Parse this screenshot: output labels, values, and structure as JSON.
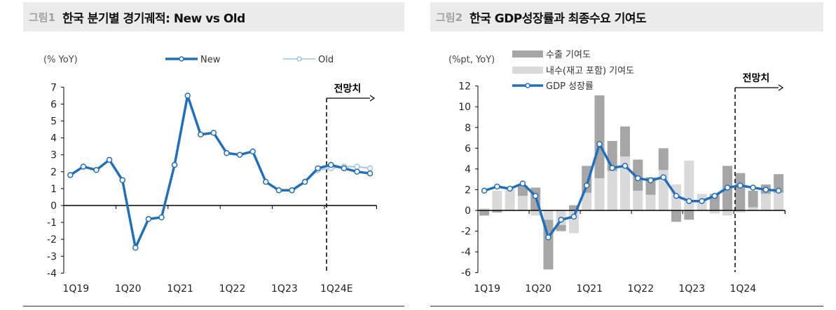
{
  "figures": [
    {
      "number": "그림1",
      "title": "한국 분기별 경기궤적: New vs Old"
    },
    {
      "number": "그림2",
      "title": "한국 GDP성장률과 최종수요 기여도"
    }
  ],
  "colors": {
    "new": "#1f6fbf",
    "old": "#9dc3e6",
    "export": "#a6a6a6",
    "domestic": "#d9d9d9",
    "header_bg": "#ebebeb"
  },
  "chart_data": [
    {
      "type": "line",
      "unit_label": "(% YoY)",
      "forecast_label": "전망치",
      "forecast_start": "1Q24",
      "x": [
        "1Q19",
        "2Q19",
        "3Q19",
        "4Q19",
        "1Q20",
        "2Q20",
        "3Q20",
        "4Q20",
        "1Q21",
        "2Q21",
        "3Q21",
        "4Q21",
        "1Q22",
        "2Q22",
        "3Q22",
        "4Q22",
        "1Q23",
        "2Q23",
        "3Q23",
        "4Q23",
        "1Q24",
        "2Q24",
        "3Q24",
        "4Q24"
      ],
      "x_tick_labels": [
        "1Q19",
        "1Q20",
        "1Q21",
        "1Q22",
        "1Q23",
        "1Q24E"
      ],
      "ylim": [
        -4,
        7
      ],
      "y_ticks": [
        -4,
        -3,
        -2,
        -1,
        0,
        1,
        2,
        3,
        4,
        5,
        6,
        7
      ],
      "legend_position": "top",
      "series": [
        {
          "name": "New",
          "color": "#1f6fbf",
          "values": [
            1.8,
            2.3,
            2.1,
            2.7,
            1.5,
            -2.5,
            -0.8,
            -0.7,
            2.4,
            6.5,
            4.2,
            4.3,
            3.1,
            3.0,
            3.2,
            1.4,
            0.9,
            0.9,
            1.4,
            2.2,
            2.4,
            2.2,
            2.0,
            1.9
          ]
        },
        {
          "name": "Old",
          "color": "#9dc3e6",
          "values": [
            null,
            null,
            null,
            null,
            null,
            null,
            null,
            null,
            null,
            null,
            null,
            null,
            null,
            null,
            null,
            null,
            null,
            0.9,
            1.4,
            2.1,
            2.2,
            2.3,
            2.3,
            2.2
          ]
        }
      ]
    },
    {
      "type": "bar+line",
      "unit_label": "(%pt, YoY)",
      "forecast_label": "전망치",
      "forecast_start": "1Q24",
      "x": [
        "1Q19",
        "2Q19",
        "3Q19",
        "4Q19",
        "1Q20",
        "2Q20",
        "3Q20",
        "4Q20",
        "1Q21",
        "2Q21",
        "3Q21",
        "4Q21",
        "1Q22",
        "2Q22",
        "3Q22",
        "4Q22",
        "1Q23",
        "2Q23",
        "3Q23",
        "4Q23",
        "1Q24",
        "2Q24",
        "3Q24",
        "4Q24"
      ],
      "x_tick_labels": [
        "1Q19",
        "1Q20",
        "1Q21",
        "1Q22",
        "1Q23",
        "1Q24"
      ],
      "ylim": [
        -6,
        12
      ],
      "y_ticks": [
        -6,
        -4,
        -2,
        0,
        2,
        4,
        6,
        8,
        10,
        12
      ],
      "legend_position": "top-left",
      "series": [
        {
          "name": "수출 기여도",
          "kind": "stacked-bar",
          "color": "#a6a6a6",
          "values": [
            -0.5,
            -0.2,
            0,
            1.0,
            2.2,
            -4.8,
            -0.6,
            0.5,
            2.6,
            8.0,
            2.9,
            2.9,
            3.0,
            1.7,
            2.1,
            -1.1,
            -0.9,
            0,
            1.6,
            4.3,
            3.6,
            1.6,
            0.9,
            1.8
          ]
        },
        {
          "name": "내수(재고 포함) 기여도",
          "kind": "stacked-bar",
          "color": "#d9d9d9",
          "values": [
            0.2,
            1.9,
            2.1,
            1.4,
            -0.5,
            -0.9,
            -1.4,
            -2.2,
            1.7,
            3.1,
            3.8,
            5.2,
            1.9,
            1.5,
            3.9,
            2.5,
            4.8,
            1.6,
            -0.3,
            -0.5,
            -0.2,
            0.3,
            1.6,
            1.7
          ]
        },
        {
          "name": "GDP 성장률",
          "kind": "line",
          "color": "#1f6fbf",
          "values": [
            1.9,
            2.3,
            2.1,
            2.6,
            1.4,
            -2.6,
            -0.9,
            -0.6,
            2.4,
            6.4,
            4.1,
            4.3,
            3.1,
            2.9,
            3.2,
            1.4,
            0.9,
            0.9,
            1.4,
            2.2,
            2.4,
            2.2,
            2.0,
            1.9
          ]
        }
      ]
    }
  ]
}
